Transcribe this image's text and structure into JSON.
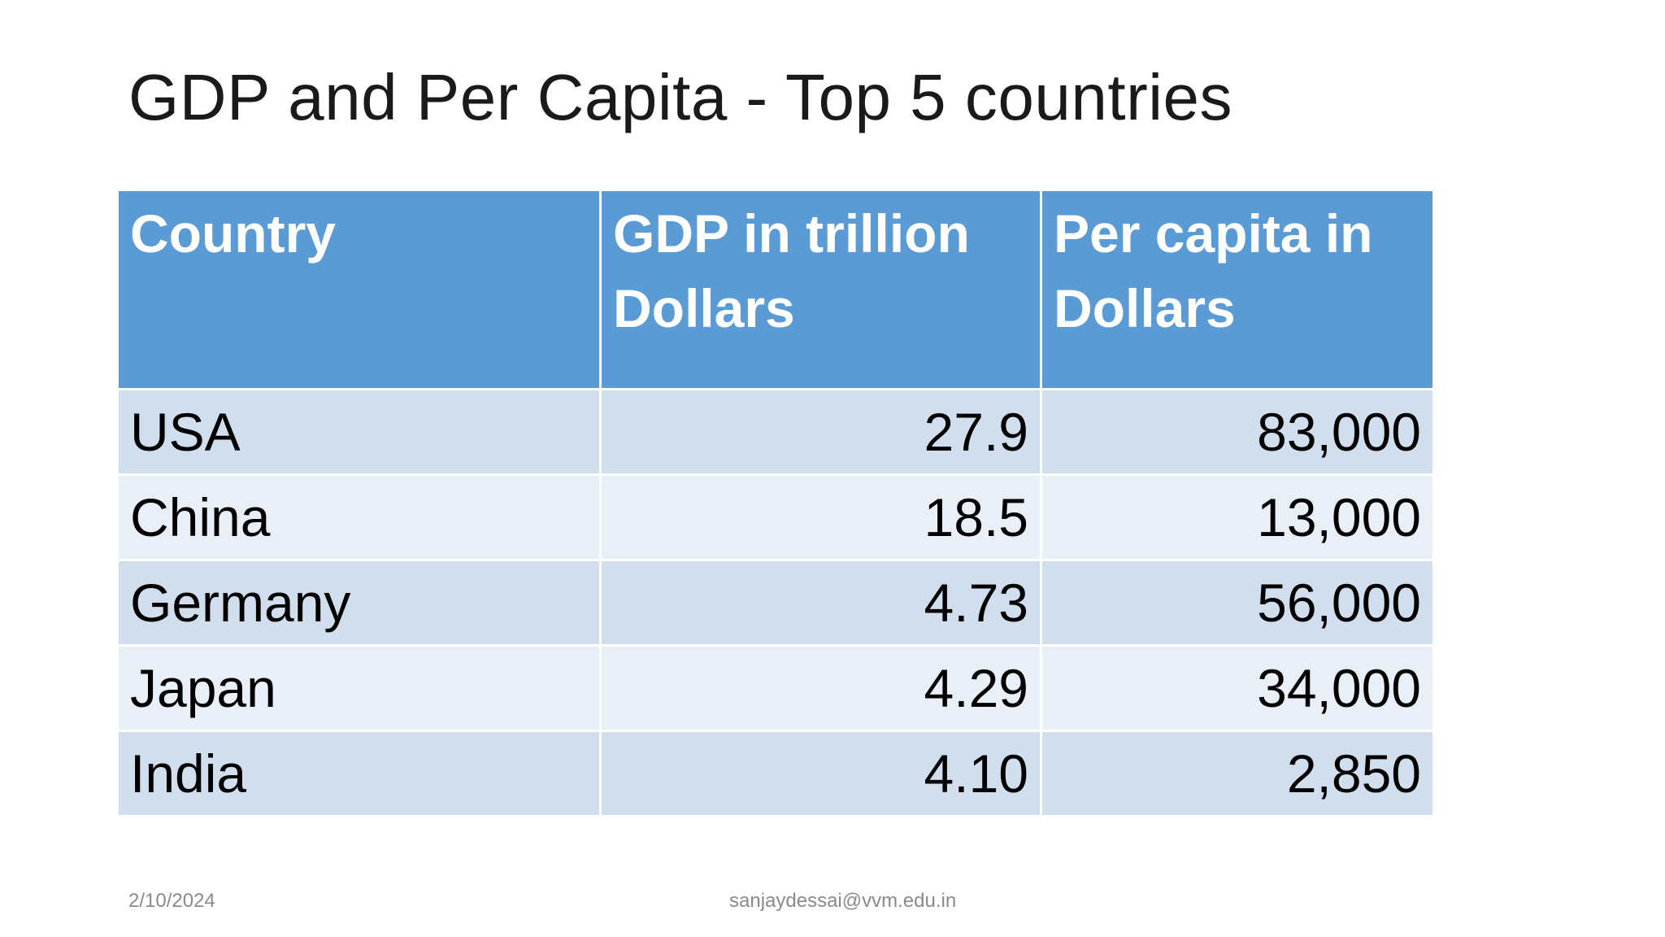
{
  "slide": {
    "title": "GDP and Per Capita - Top 5 countries"
  },
  "table": {
    "headers": [
      "Country",
      "GDP in trillion Dollars",
      "Per capita in Dollars"
    ],
    "rows": [
      [
        "USA",
        "27.9",
        "83,000"
      ],
      [
        "China",
        "18.5",
        "13,000"
      ],
      [
        "Germany",
        "4.73",
        "56,000"
      ],
      [
        "Japan",
        "4.29",
        "34,000"
      ],
      [
        "India",
        "4.10",
        "2,850"
      ]
    ]
  },
  "footer": {
    "date": "2/10/2024",
    "email": "sanjaydessai@vvm.edu.in"
  },
  "colors": {
    "header_background": "#5b9bd5",
    "row_band_dark": "#d0deed",
    "row_band_light": "#e9eff7",
    "footer_text": "#8a8a8a"
  }
}
